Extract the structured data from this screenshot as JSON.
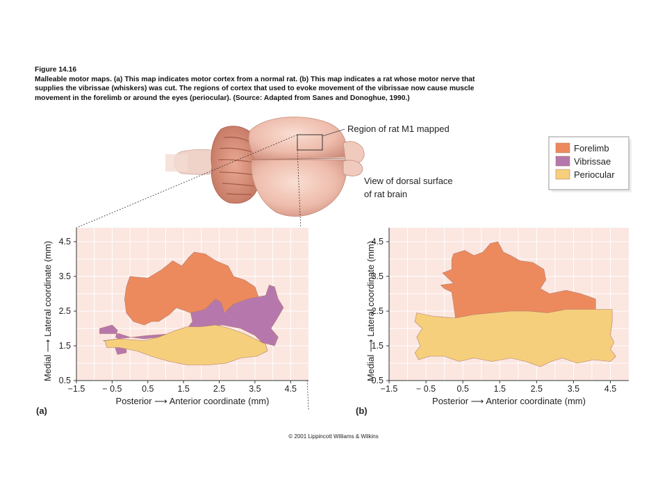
{
  "caption": {
    "figure_label": "Figure 14.16",
    "lines": [
      "Malleable motor maps. (a) This map indicates motor cortex from a normal rat. (b) This map indicates a rat whose motor nerve that",
      "supplies the vibrissae (whiskers) was cut. The regions of cortex that used to evoke movement of the vibrissae now cause muscle",
      "movement in the forelimb or around the eyes (periocular). (Source: Adapted from Sanes and Donoghue, 1990.)"
    ]
  },
  "brain": {
    "region_label": "Region of rat M1 mapped",
    "view_label_line1": "View of dorsal surface",
    "view_label_line2": "of rat brain"
  },
  "legend": {
    "items": [
      {
        "label": "Forelimb",
        "color": "#ec8a5e"
      },
      {
        "label": "Vibrissae",
        "color": "#b678ac"
      },
      {
        "label": "Periocular",
        "color": "#f6cf7c"
      }
    ]
  },
  "colors": {
    "plot_background": "#fbe6e0",
    "grid": "#ffffff",
    "forelimb": "#ec8a5e",
    "vibrissae": "#b678ac",
    "periocular": "#f6cf7c",
    "outline": "#b07a6a"
  },
  "chart_data": [
    {
      "type": "area",
      "panel_label": "(a)",
      "xlabel": "Posterior ⟶ Anterior coordinate (mm)",
      "ylabel": "Medial ⟶ Lateral coordinate (mm)",
      "xlim": [
        -1.5,
        5.0
      ],
      "ylim": [
        0.5,
        4.9
      ],
      "xticks": [
        -1.5,
        -0.5,
        0.5,
        1.5,
        2.5,
        3.5,
        4.5
      ],
      "xtick_labels": [
        "−1.5",
        "− 0.5",
        "0.5",
        "1.5",
        "2.5",
        "3.5",
        "4.5"
      ],
      "yticks": [
        0.5,
        1.5,
        2.5,
        3.5,
        4.5
      ],
      "ytick_labels": [
        "0.5",
        "1.5",
        "2.5",
        "3.5",
        "4.5"
      ],
      "grid": true,
      "series": [
        {
          "name": "Forelimb",
          "color_key": "forelimb",
          "points": [
            [
              0.0,
              3.5
            ],
            [
              0.5,
              3.45
            ],
            [
              0.9,
              3.7
            ],
            [
              1.2,
              3.95
            ],
            [
              1.45,
              3.8
            ],
            [
              1.65,
              4.05
            ],
            [
              1.8,
              4.2
            ],
            [
              2.1,
              4.15
            ],
            [
              2.4,
              3.95
            ],
            [
              2.75,
              3.8
            ],
            [
              2.9,
              3.5
            ],
            [
              3.2,
              3.4
            ],
            [
              3.5,
              3.2
            ],
            [
              3.6,
              2.9
            ],
            [
              3.2,
              2.65
            ],
            [
              2.7,
              2.5
            ],
            [
              2.2,
              2.4
            ],
            [
              1.7,
              2.45
            ],
            [
              1.3,
              2.6
            ],
            [
              1.1,
              2.4
            ],
            [
              0.8,
              2.2
            ],
            [
              0.6,
              2.2
            ],
            [
              0.4,
              2.1
            ],
            [
              0.1,
              2.2
            ],
            [
              -0.1,
              2.45
            ],
            [
              -0.15,
              2.85
            ],
            [
              -0.1,
              3.2
            ]
          ]
        },
        {
          "name": "Vibrissae",
          "color_key": "vibrissae",
          "points": [
            [
              -0.85,
              2.0
            ],
            [
              -0.5,
              2.1
            ],
            [
              -0.35,
              1.95
            ],
            [
              -0.4,
              1.75
            ],
            [
              -0.1,
              1.55
            ],
            [
              -0.1,
              1.3
            ],
            [
              -0.35,
              1.25
            ],
            [
              -0.45,
              1.55
            ],
            [
              -0.75,
              1.65
            ],
            [
              0.5,
              1.8
            ],
            [
              1.2,
              1.85
            ],
            [
              1.6,
              2.0
            ],
            [
              1.75,
              2.2
            ],
            [
              1.7,
              2.45
            ],
            [
              2.1,
              2.55
            ],
            [
              2.4,
              2.85
            ],
            [
              2.55,
              2.75
            ],
            [
              2.65,
              2.45
            ],
            [
              2.9,
              2.7
            ],
            [
              3.3,
              2.85
            ],
            [
              3.8,
              2.95
            ],
            [
              3.9,
              3.25
            ],
            [
              4.05,
              3.2
            ],
            [
              4.15,
              2.85
            ],
            [
              4.3,
              2.6
            ],
            [
              4.1,
              2.25
            ],
            [
              3.95,
              2.0
            ],
            [
              4.15,
              1.75
            ],
            [
              4.05,
              1.5
            ],
            [
              3.7,
              1.6
            ],
            [
              3.5,
              1.8
            ],
            [
              3.1,
              2.0
            ],
            [
              2.6,
              2.1
            ],
            [
              2.1,
              2.05
            ],
            [
              1.6,
              1.85
            ],
            [
              1.2,
              1.9
            ],
            [
              0.8,
              1.75
            ],
            [
              0.4,
              1.7
            ],
            [
              0.0,
              1.75
            ],
            [
              -0.3,
              1.85
            ],
            [
              -0.6,
              1.85
            ],
            [
              -0.85,
              1.85
            ]
          ]
        },
        {
          "name": "Periocular",
          "color_key": "periocular",
          "points": [
            [
              -0.7,
              1.65
            ],
            [
              -0.3,
              1.7
            ],
            [
              0.4,
              1.65
            ],
            [
              0.8,
              1.75
            ],
            [
              1.3,
              1.95
            ],
            [
              1.6,
              2.05
            ],
            [
              2.0,
              2.05
            ],
            [
              2.4,
              2.1
            ],
            [
              2.8,
              2.0
            ],
            [
              3.2,
              1.85
            ],
            [
              3.5,
              1.7
            ],
            [
              3.8,
              1.55
            ],
            [
              3.85,
              1.35
            ],
            [
              3.55,
              1.2
            ],
            [
              3.1,
              1.15
            ],
            [
              2.7,
              1.0
            ],
            [
              2.2,
              0.95
            ],
            [
              1.6,
              0.95
            ],
            [
              1.1,
              1.05
            ],
            [
              0.6,
              1.2
            ],
            [
              0.2,
              1.35
            ],
            [
              -0.3,
              1.45
            ],
            [
              -0.65,
              1.45
            ]
          ]
        }
      ]
    },
    {
      "type": "area",
      "panel_label": "(b)",
      "xlabel": "Posterior ⟶ Anterior coordinate (mm)",
      "ylabel": "Medial ⟶ Lateral coordinate (mm)",
      "xlim": [
        -1.5,
        5.0
      ],
      "ylim": [
        0.5,
        4.9
      ],
      "xticks": [
        -1.5,
        -0.5,
        0.5,
        1.5,
        2.5,
        3.5,
        4.5
      ],
      "xtick_labels": [
        "−1.5",
        "− 0.5",
        "0.5",
        "1.5",
        "2.5",
        "3.5",
        "4.5"
      ],
      "yticks": [
        0.5,
        1.5,
        2.5,
        3.5,
        4.5
      ],
      "ytick_labels": [
        "0.5",
        "1.5",
        "2.5",
        "3.5",
        "4.5"
      ],
      "grid": true,
      "series": [
        {
          "name": "Forelimb",
          "color_key": "forelimb",
          "points": [
            [
              0.25,
              4.15
            ],
            [
              0.55,
              4.25
            ],
            [
              0.8,
              4.1
            ],
            [
              1.05,
              4.2
            ],
            [
              1.25,
              4.45
            ],
            [
              1.45,
              4.5
            ],
            [
              1.6,
              4.2
            ],
            [
              1.8,
              4.1
            ],
            [
              2.05,
              3.95
            ],
            [
              2.4,
              3.9
            ],
            [
              2.7,
              3.7
            ],
            [
              2.75,
              3.4
            ],
            [
              2.6,
              3.15
            ],
            [
              2.85,
              3.0
            ],
            [
              3.3,
              3.1
            ],
            [
              3.7,
              3.0
            ],
            [
              4.1,
              2.85
            ],
            [
              4.1,
              2.5
            ],
            [
              3.8,
              2.45
            ],
            [
              3.4,
              2.35
            ],
            [
              3.0,
              2.2
            ],
            [
              2.6,
              2.25
            ],
            [
              2.2,
              2.25
            ],
            [
              1.8,
              2.4
            ],
            [
              1.4,
              2.35
            ],
            [
              1.0,
              2.25
            ],
            [
              0.6,
              2.25
            ],
            [
              0.3,
              2.3
            ],
            [
              0.25,
              2.7
            ],
            [
              0.2,
              3.05
            ],
            [
              0.0,
              3.15
            ],
            [
              -0.1,
              3.25
            ],
            [
              0.25,
              3.3
            ],
            [
              0.05,
              3.5
            ],
            [
              -0.05,
              3.6
            ],
            [
              0.2,
              3.7
            ],
            [
              0.2,
              4.0
            ]
          ]
        },
        {
          "name": "Periocular",
          "color_key": "periocular",
          "points": [
            [
              -0.75,
              2.45
            ],
            [
              -0.3,
              2.35
            ],
            [
              0.3,
              2.3
            ],
            [
              0.8,
              2.4
            ],
            [
              1.3,
              2.45
            ],
            [
              1.8,
              2.5
            ],
            [
              2.3,
              2.5
            ],
            [
              2.8,
              2.45
            ],
            [
              3.3,
              2.55
            ],
            [
              3.8,
              2.55
            ],
            [
              4.55,
              2.55
            ],
            [
              4.55,
              2.2
            ],
            [
              4.5,
              1.8
            ],
            [
              4.6,
              1.6
            ],
            [
              4.5,
              1.4
            ],
            [
              4.65,
              1.2
            ],
            [
              4.5,
              1.05
            ],
            [
              4.05,
              1.1
            ],
            [
              3.6,
              1.0
            ],
            [
              3.2,
              1.15
            ],
            [
              2.9,
              1.05
            ],
            [
              2.6,
              0.9
            ],
            [
              2.2,
              1.05
            ],
            [
              1.8,
              1.15
            ],
            [
              1.3,
              1.05
            ],
            [
              0.8,
              1.15
            ],
            [
              0.4,
              1.05
            ],
            [
              0.0,
              1.2
            ],
            [
              -0.4,
              1.2
            ],
            [
              -0.7,
              1.1
            ],
            [
              -0.8,
              1.3
            ],
            [
              -0.65,
              1.5
            ],
            [
              -0.75,
              1.75
            ],
            [
              -0.6,
              2.0
            ],
            [
              -0.8,
              2.2
            ]
          ]
        }
      ]
    }
  ],
  "copyright": "© 2001 Lippincott Williams & Wilkins"
}
